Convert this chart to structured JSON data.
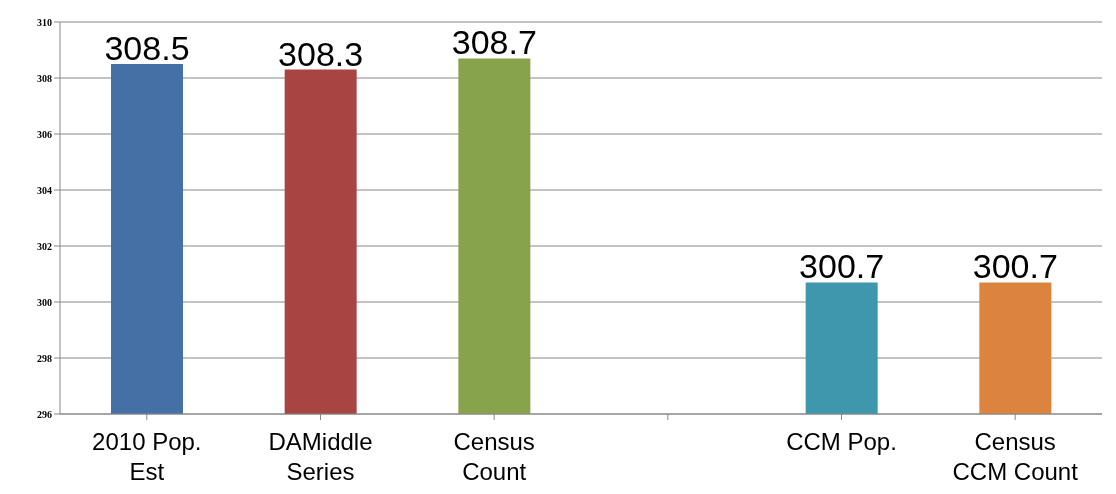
{
  "chart_data": {
    "type": "bar",
    "categories": [
      "2010 Pop. Est",
      "DAMiddle Series",
      "Census Count",
      null,
      "CCM Pop.",
      "Census CCM Count"
    ],
    "values": [
      308.5,
      308.3,
      308.7,
      null,
      300.7,
      300.7
    ],
    "colors": [
      "#4470a5",
      "#a84542",
      "#87a34b",
      "#4298ae",
      "#3f97ae",
      "#db843d"
    ],
    "ylim": [
      296,
      310
    ],
    "yticks": [
      296,
      298,
      300,
      302,
      304,
      306,
      308,
      310
    ],
    "grid": "y",
    "data_labels": true
  }
}
